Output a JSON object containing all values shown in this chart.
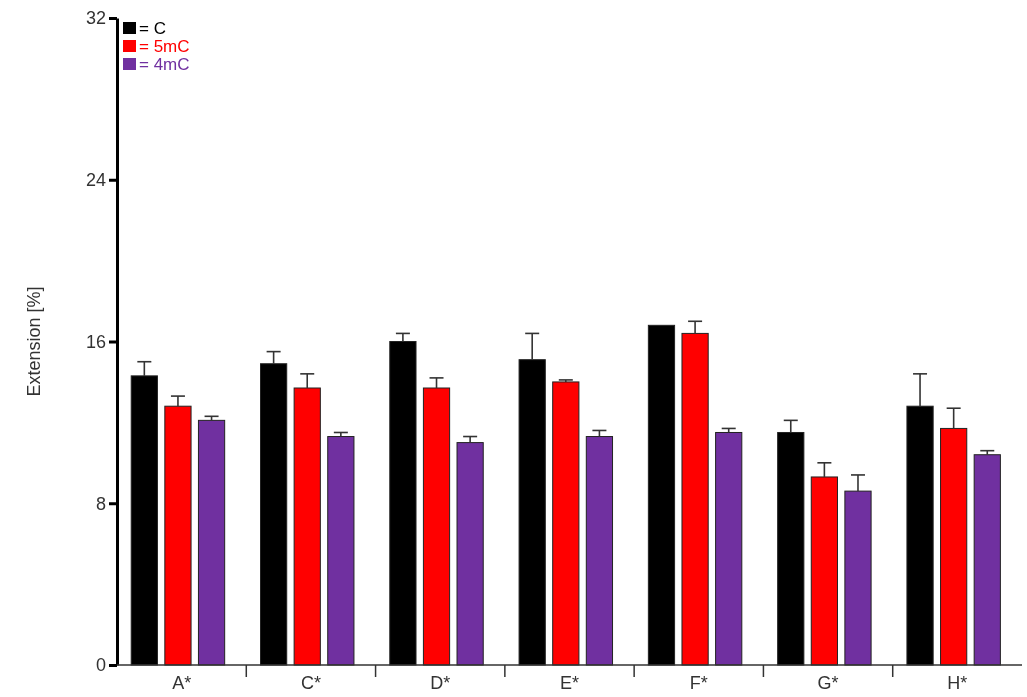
{
  "chart_data": {
    "type": "bar",
    "ylabel": "Extension [%]",
    "categories": [
      "A*",
      "C*",
      "D*",
      "E*",
      "F*",
      "G*",
      "H*"
    ],
    "ylim": [
      0,
      32
    ],
    "yticks": [
      0,
      8,
      16,
      24,
      32
    ],
    "grid": false,
    "legend": "top left",
    "series": [
      {
        "name": "= C",
        "color": "#000000",
        "values": [
          14.3,
          14.9,
          16.0,
          15.1,
          16.8,
          11.5,
          12.8
        ],
        "errors": [
          [
            14.3,
            15.0
          ],
          [
            14.9,
            15.5
          ],
          [
            16.0,
            16.4
          ],
          [
            15.1,
            16.4
          ],
          null,
          [
            11.5,
            12.1
          ],
          [
            12.8,
            14.4
          ]
        ]
      },
      {
        "name": "= 5mC",
        "color": "#ff0000",
        "values": [
          12.8,
          13.7,
          13.7,
          14.0,
          16.4,
          9.3,
          11.7
        ],
        "errors": [
          [
            12.8,
            13.3
          ],
          [
            13.7,
            14.4
          ],
          [
            13.7,
            14.2
          ],
          [
            14.0,
            14.1
          ],
          [
            16.4,
            17.0
          ],
          [
            9.3,
            10.0
          ],
          [
            11.7,
            12.7
          ]
        ]
      },
      {
        "name": "= 4mC",
        "color": "#7030a0",
        "values": [
          12.1,
          11.3,
          11.0,
          11.3,
          11.5,
          8.6,
          10.4
        ],
        "errors": [
          [
            12.1,
            12.3
          ],
          [
            11.3,
            11.5
          ],
          [
            11.0,
            11.3
          ],
          [
            11.3,
            11.6
          ],
          [
            11.5,
            11.7
          ],
          [
            8.6,
            9.4
          ],
          [
            10.4,
            10.6
          ]
        ]
      }
    ]
  }
}
